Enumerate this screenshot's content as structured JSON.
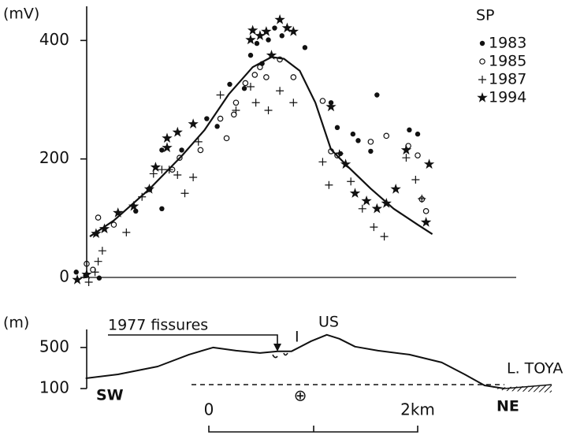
{
  "chart_data": [
    {
      "type": "scatter",
      "y_label": "(mV)",
      "legend_title": "SP",
      "xlim": [
        -1.3,
        3.0
      ],
      "ylim": [
        0,
        455
      ],
      "yticks": [
        0,
        200,
        400
      ],
      "series": [
        {
          "name": "1983",
          "marker": "dot",
          "color": "#111",
          "x": [
            -1.27,
            -1.18,
            -1.05,
            -0.7,
            -0.45,
            -0.45,
            -0.26,
            -0.02,
            0.08,
            0.2,
            0.34,
            0.4,
            0.46,
            0.51,
            0.57,
            0.63,
            0.7,
            0.92,
            1.17,
            1.23,
            1.26,
            1.38,
            1.43,
            1.55,
            1.61,
            1.92,
            2.0
          ],
          "values": [
            9,
            3,
            -1,
            112,
            116,
            215,
            215,
            268,
            255,
            326,
            319,
            375,
            395,
            361,
            401,
            421,
            408,
            388,
            295,
            253,
            209,
            242,
            231,
            213,
            308,
            249,
            242
          ]
        },
        {
          "name": "1985",
          "marker": "circle",
          "color": "#111",
          "x": [
            -1.17,
            -1.11,
            -1.06,
            -0.91,
            -0.57,
            -0.35,
            -0.28,
            -0.08,
            0.11,
            0.17,
            0.24,
            0.26,
            0.35,
            0.44,
            0.49,
            0.55,
            0.68,
            0.81,
            1.09,
            1.17,
            1.23,
            1.55,
            1.7,
            1.91,
            2.0,
            2.04,
            2.08
          ],
          "values": [
            23,
            13,
            101,
            89,
            149,
            182,
            202,
            215,
            268,
            235,
            275,
            295,
            328,
            342,
            355,
            338,
            368,
            338,
            298,
            213,
            206,
            229,
            239,
            222,
            206,
            132,
            112
          ]
        },
        {
          "name": "1987",
          "marker": "plus",
          "color": "#111",
          "x": [
            -1.15,
            -1.09,
            -1.06,
            -1.02,
            -0.79,
            -0.64,
            -0.53,
            -0.45,
            -0.38,
            -0.3,
            -0.23,
            -0.15,
            -0.1,
            0.11,
            0.26,
            0.4,
            0.45,
            0.57,
            0.68,
            0.81,
            1.09,
            1.15,
            1.25,
            1.36,
            1.47,
            1.58,
            1.68,
            1.89,
            1.98,
            2.04
          ],
          "values": [
            -8,
            9,
            27,
            45,
            76,
            136,
            175,
            182,
            182,
            173,
            142,
            169,
            229,
            308,
            282,
            322,
            295,
            282,
            315,
            295,
            195,
            156,
            209,
            162,
            116,
            85,
            69,
            202,
            165,
            133
          ]
        },
        {
          "name": "1994",
          "marker": "star",
          "color": "#111",
          "x": [
            -1.26,
            -1.17,
            -1.08,
            -1.0,
            -0.87,
            -0.72,
            -0.57,
            -0.51,
            -0.4,
            -0.3,
            -0.15,
            -0.4,
            0.4,
            0.42,
            0.49,
            0.55,
            0.6,
            0.68,
            0.75,
            0.81,
            1.17,
            1.31,
            1.4,
            1.51,
            1.61,
            1.7,
            1.79,
            1.89,
            2.11,
            2.08
          ],
          "values": [
            -4,
            5,
            74,
            82,
            109,
            120,
            149,
            186,
            235,
            245,
            259,
            219,
            401,
            417,
            408,
            415,
            375,
            435,
            421,
            415,
            288,
            191,
            142,
            129,
            116,
            125,
            149,
            215,
            191,
            93
          ]
        }
      ],
      "curve": {
        "color": "#111",
        "x": [
          -1.14,
          -0.91,
          -0.57,
          -0.26,
          -0.04,
          0.19,
          0.42,
          0.6,
          0.72,
          0.87,
          1.02,
          1.17,
          1.32,
          1.55,
          1.77,
          2.0,
          2.14
        ],
        "values": [
          69,
          96,
          149,
          205,
          249,
          309,
          355,
          372,
          369,
          349,
          295,
          216,
          189,
          150,
          116,
          89,
          73
        ]
      }
    },
    {
      "type": "line",
      "y_label": "(m)",
      "xlim": [
        -1.3,
        3.0
      ],
      "ylim": [
        100,
        660
      ],
      "yticks": [
        100,
        500
      ],
      "x": [
        -1.18,
        -0.87,
        -0.49,
        -0.19,
        0.04,
        0.26,
        0.49,
        0.66,
        0.79,
        0.98,
        1.13,
        1.25,
        1.4,
        1.62,
        1.92,
        2.23,
        2.45,
        2.64,
        2.83
      ],
      "values": [
        200,
        238,
        315,
        431,
        500,
        469,
        446,
        462,
        462,
        562,
        623,
        585,
        508,
        469,
        431,
        354,
        238,
        131,
        100
      ],
      "color": "#111",
      "annotations": {
        "fissures": "1977 fissures",
        "fissure_mark": "I",
        "summit": "US",
        "lake": "L. TOYA",
        "sw": "SW",
        "ne": "NE",
        "center": "⊕"
      },
      "scale_bar": {
        "start": "0",
        "end": "2km"
      }
    }
  ]
}
